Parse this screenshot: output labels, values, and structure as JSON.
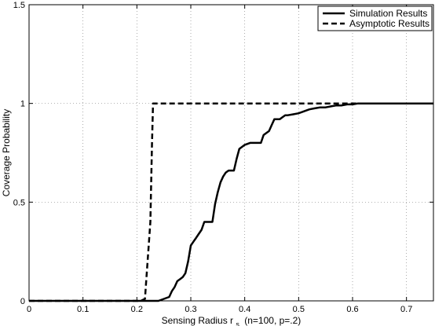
{
  "chart_data": {
    "type": "line",
    "title": "",
    "xlabel": "Sensing Radius r",
    "xlabel_subscript": "s",
    "xlabel_suffix": "(n=100, p=.2)",
    "ylabel": "Coverage Probability",
    "xlim": [
      0,
      0.75
    ],
    "ylim": [
      0,
      1.5
    ],
    "xticks": [
      0,
      0.1,
      0.2,
      0.3,
      0.4,
      0.5,
      0.6,
      0.7
    ],
    "xtick_labels": [
      "0",
      "0.1",
      "0.2",
      "0.3",
      "0.4",
      "0.5",
      "0.6",
      "0.7"
    ],
    "yticks": [
      0,
      0.5,
      1,
      1.5
    ],
    "ytick_labels": [
      "0",
      "0.5",
      "1",
      "1.5"
    ],
    "grid": true,
    "legend_position": "top-right",
    "series": [
      {
        "name": "Simulation Results",
        "style": "solid",
        "color": "#000000",
        "x": [
          0,
          0.24,
          0.25,
          0.26,
          0.265,
          0.27,
          0.275,
          0.28,
          0.285,
          0.29,
          0.295,
          0.3,
          0.305,
          0.31,
          0.315,
          0.32,
          0.325,
          0.33,
          0.335,
          0.34,
          0.345,
          0.35,
          0.355,
          0.36,
          0.365,
          0.37,
          0.375,
          0.38,
          0.385,
          0.39,
          0.395,
          0.4,
          0.41,
          0.415,
          0.42,
          0.43,
          0.435,
          0.44,
          0.445,
          0.45,
          0.455,
          0.46,
          0.465,
          0.47,
          0.475,
          0.48,
          0.49,
          0.5,
          0.51,
          0.52,
          0.53,
          0.54,
          0.55,
          0.56,
          0.57,
          0.58,
          0.59,
          0.6,
          0.61,
          0.62,
          0.7,
          0.75
        ],
        "y": [
          0,
          0,
          0.01,
          0.02,
          0.05,
          0.07,
          0.1,
          0.11,
          0.12,
          0.14,
          0.2,
          0.28,
          0.3,
          0.32,
          0.34,
          0.36,
          0.4,
          0.4,
          0.4,
          0.4,
          0.49,
          0.55,
          0.6,
          0.63,
          0.65,
          0.66,
          0.66,
          0.66,
          0.72,
          0.77,
          0.78,
          0.79,
          0.8,
          0.8,
          0.8,
          0.8,
          0.84,
          0.85,
          0.86,
          0.89,
          0.92,
          0.92,
          0.92,
          0.93,
          0.94,
          0.94,
          0.945,
          0.95,
          0.96,
          0.97,
          0.975,
          0.98,
          0.98,
          0.985,
          0.99,
          0.99,
          0.995,
          0.995,
          1,
          1,
          1,
          1
        ]
      },
      {
        "name": "Asymptotic Results",
        "style": "dashed",
        "color": "#000000",
        "x": [
          0,
          0.207,
          0.215,
          0.225,
          0.228,
          0.23,
          0.6,
          0.75
        ],
        "y": [
          0,
          0,
          0.01,
          0.4,
          0.8,
          1,
          1,
          1
        ]
      }
    ]
  }
}
